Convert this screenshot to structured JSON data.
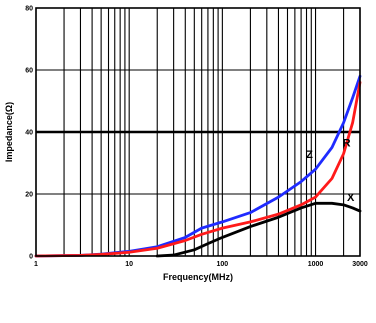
{
  "chart_data": {
    "type": "line",
    "title": "",
    "xlabel": "Frequency(MHz)",
    "ylabel": "Impedance(Ω)",
    "x_scale": "log",
    "xlim": [
      1,
      3000
    ],
    "ylim": [
      0,
      80
    ],
    "x_ticks": [
      {
        "value": 1,
        "label": "1"
      },
      {
        "value": 10,
        "label": "10"
      },
      {
        "value": 100,
        "label": "100"
      },
      {
        "value": 1000,
        "label": "1000"
      },
      {
        "value": 3000,
        "label": "3000"
      }
    ],
    "y_ticks": [
      {
        "value": 0,
        "label": "0"
      },
      {
        "value": 20,
        "label": "20"
      },
      {
        "value": 40,
        "label": "40"
      },
      {
        "value": 60,
        "label": "60"
      },
      {
        "value": 80,
        "label": "80"
      }
    ],
    "grid": true,
    "highlight_line": {
      "y": 40
    },
    "series": [
      {
        "name": "Z",
        "color": "#1f2bff",
        "points": [
          [
            1,
            0
          ],
          [
            3,
            0.2
          ],
          [
            5,
            0.6
          ],
          [
            10,
            1.5
          ],
          [
            20,
            3
          ],
          [
            40,
            6
          ],
          [
            60,
            9
          ],
          [
            100,
            11
          ],
          [
            200,
            14
          ],
          [
            400,
            19
          ],
          [
            700,
            24
          ],
          [
            1000,
            28
          ],
          [
            1500,
            35
          ],
          [
            2000,
            43
          ],
          [
            2500,
            51
          ],
          [
            3000,
            58
          ]
        ]
      },
      {
        "name": "R",
        "color": "#ff1a1a",
        "points": [
          [
            1,
            0
          ],
          [
            3,
            0.2
          ],
          [
            5,
            0.5
          ],
          [
            10,
            1.2
          ],
          [
            20,
            2.5
          ],
          [
            40,
            5
          ],
          [
            60,
            7
          ],
          [
            100,
            9
          ],
          [
            200,
            11
          ],
          [
            400,
            13.5
          ],
          [
            700,
            16.5
          ],
          [
            1000,
            19
          ],
          [
            1500,
            25
          ],
          [
            2000,
            33
          ],
          [
            2500,
            43
          ],
          [
            3000,
            56
          ]
        ]
      },
      {
        "name": "X",
        "color": "#000000",
        "points": [
          [
            20,
            0
          ],
          [
            30,
            0.3
          ],
          [
            50,
            2
          ],
          [
            70,
            4
          ],
          [
            100,
            6
          ],
          [
            200,
            9.5
          ],
          [
            400,
            12.5
          ],
          [
            700,
            15.5
          ],
          [
            1000,
            17
          ],
          [
            1500,
            17
          ],
          [
            2000,
            16.5
          ],
          [
            2500,
            15.5
          ],
          [
            3000,
            14.5
          ]
        ]
      }
    ]
  }
}
